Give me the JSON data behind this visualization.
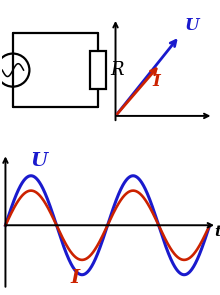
{
  "circuit_color": "#000000",
  "U_color": "#1a1acd",
  "I_color": "#cc2200",
  "bg_color": "#ffffff",
  "U_label": "U",
  "I_label": "I",
  "R_label": "R",
  "t_label": "t",
  "U_amplitude": 1.0,
  "I_amplitude": 0.7,
  "num_cycles": 2.0,
  "font_size_label": 12,
  "font_size_R": 13,
  "font_size_t": 11
}
